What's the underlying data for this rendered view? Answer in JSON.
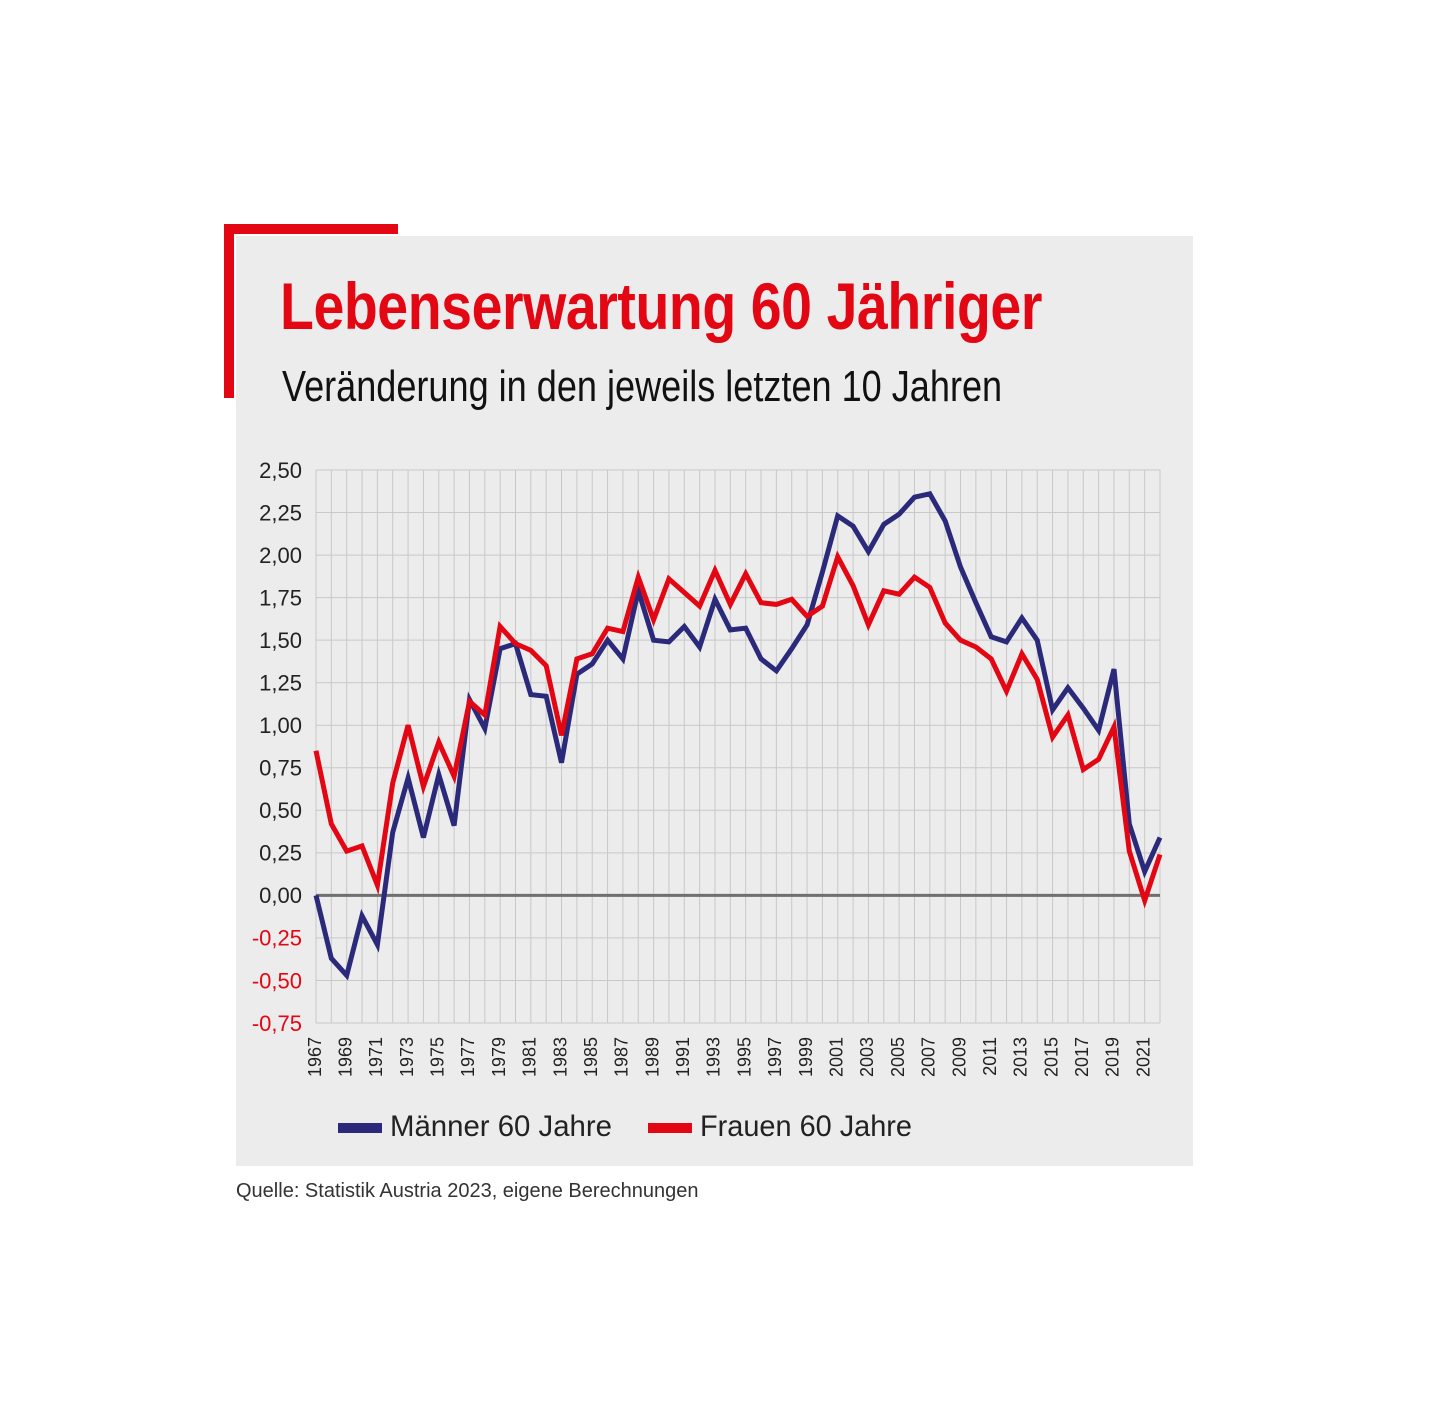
{
  "title": "Lebenserwartung 60 Jähriger",
  "subtitle": "Veränderung in den jeweils letzten 10 Jahren",
  "source": "Quelle: Statistik Austria 2023, eigene Berechnungen",
  "colors": {
    "accent": "#e30613",
    "men": "#2b2a7a",
    "women": "#e30613",
    "panel": "#ececec",
    "grid": "#c8c8c8",
    "zero_line": "#6f6f6f",
    "negative_tick": "#e30613"
  },
  "chart_data": {
    "type": "line",
    "ylim": [
      -0.75,
      2.5
    ],
    "yticks": [
      "2,50",
      "2,25",
      "2,00",
      "1,75",
      "1,50",
      "1,25",
      "1,00",
      "0,75",
      "0,50",
      "0,25",
      "0,00",
      "-0,25",
      "-0,50",
      "-0,75"
    ],
    "xticks": [
      "1967",
      "1969",
      "1971",
      "1973",
      "1975",
      "1977",
      "1979",
      "1981",
      "1983",
      "1985",
      "1987",
      "1989",
      "1991",
      "1993",
      "1995",
      "1997",
      "1999",
      "2001",
      "2003",
      "2005",
      "2007",
      "2009",
      "2011",
      "2013",
      "2015",
      "2017",
      "2019",
      "2021"
    ],
    "grid": true,
    "legend_position": "bottom",
    "x": [
      1967,
      1968,
      1969,
      1970,
      1971,
      1972,
      1973,
      1974,
      1975,
      1976,
      1977,
      1978,
      1979,
      1980,
      1981,
      1982,
      1983,
      1984,
      1985,
      1986,
      1987,
      1988,
      1989,
      1990,
      1991,
      1992,
      1993,
      1994,
      1995,
      1996,
      1997,
      1998,
      1999,
      2000,
      2001,
      2002,
      2003,
      2004,
      2005,
      2006,
      2007,
      2008,
      2009,
      2010,
      2011,
      2012,
      2013,
      2014,
      2015,
      2016,
      2017,
      2018,
      2019,
      2020,
      2021,
      2022
    ],
    "series": [
      {
        "name": "Männer 60 Jahre",
        "color": "#2b2a7a",
        "values": [
          0.0,
          -0.37,
          -0.47,
          -0.12,
          -0.29,
          0.37,
          0.69,
          0.34,
          0.71,
          0.41,
          1.15,
          0.98,
          1.45,
          1.48,
          1.18,
          1.17,
          0.78,
          1.3,
          1.36,
          1.5,
          1.39,
          1.79,
          1.5,
          1.49,
          1.58,
          1.46,
          1.74,
          1.56,
          1.57,
          1.39,
          1.32,
          1.45,
          1.59,
          1.9,
          2.23,
          2.17,
          2.02,
          2.18,
          2.24,
          2.34,
          2.36,
          2.2,
          1.93,
          1.72,
          1.52,
          1.49,
          1.63,
          1.5,
          1.09,
          1.22,
          1.1,
          0.97,
          1.33,
          0.42,
          0.14,
          0.34
        ]
      },
      {
        "name": "Frauen 60 Jahre",
        "color": "#e30613",
        "values": [
          0.85,
          0.42,
          0.26,
          0.29,
          0.06,
          0.66,
          1.0,
          0.64,
          0.9,
          0.7,
          1.14,
          1.06,
          1.58,
          1.48,
          1.44,
          1.35,
          0.94,
          1.39,
          1.42,
          1.57,
          1.55,
          1.87,
          1.62,
          1.86,
          1.78,
          1.7,
          1.91,
          1.71,
          1.89,
          1.72,
          1.71,
          1.74,
          1.64,
          1.7,
          1.99,
          1.82,
          1.59,
          1.79,
          1.77,
          1.87,
          1.81,
          1.6,
          1.5,
          1.46,
          1.39,
          1.2,
          1.42,
          1.27,
          0.93,
          1.06,
          0.74,
          0.8,
          0.99,
          0.26,
          -0.03,
          0.24
        ]
      }
    ]
  }
}
